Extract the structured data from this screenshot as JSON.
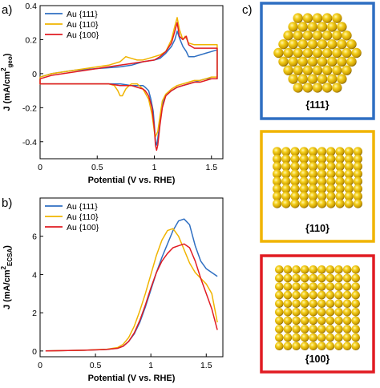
{
  "panels": {
    "a": "a)",
    "b": "b)",
    "c": "c)"
  },
  "colors": {
    "au111": "#2f6fc2",
    "au110": "#f0b400",
    "au100": "#e11b22",
    "sphere": "#e8be12",
    "sphere_dark": "#6a5000"
  },
  "chart_data": [
    {
      "type": "line",
      "panel": "a)",
      "xlabel": "Potential (V vs. RHE)",
      "ylabel_main": "J (mA/cm",
      "ylabel_sup": "2",
      "ylabel_sub": "geo",
      "ylabel_tail": ")",
      "xlim": [
        0,
        1.6
      ],
      "ylim": [
        -0.5,
        0.4
      ],
      "xticks": [
        0,
        0.5,
        1,
        1.5
      ],
      "xtick_labels": [
        "0",
        "0.5",
        "1",
        "1.5"
      ],
      "yticks": [
        -0.4,
        -0.2,
        0,
        0.2,
        0.4
      ],
      "ytick_labels": [
        "-0.4",
        "-0.2",
        "0",
        "0.2",
        "0.4"
      ],
      "legend_position": "top-left",
      "series": [
        {
          "name": "Au {111}",
          "color": "#2f6fc2",
          "x": [
            0,
            0.1,
            0.2,
            0.3,
            0.4,
            0.5,
            0.6,
            0.7,
            0.8,
            0.9,
            1.0,
            1.05,
            1.1,
            1.15,
            1.18,
            1.2,
            1.22,
            1.25,
            1.28,
            1.3,
            1.35,
            1.4,
            1.45,
            1.5,
            1.55,
            1.55,
            1.5,
            1.45,
            1.4,
            1.35,
            1.3,
            1.25,
            1.2,
            1.15,
            1.1,
            1.07,
            1.05,
            1.03,
            1.02,
            1.01,
            1.0,
            0.99,
            0.97,
            0.95,
            0.92,
            0.9,
            0.85,
            0.8,
            0.7,
            0.6,
            0.5,
            0.4,
            0.3,
            0.2,
            0.1,
            0,
            0
          ],
          "y": [
            -0.02,
            0.0,
            0.01,
            0.02,
            0.025,
            0.03,
            0.035,
            0.04,
            0.05,
            0.07,
            0.08,
            0.09,
            0.12,
            0.16,
            0.2,
            0.25,
            0.21,
            0.16,
            0.13,
            0.1,
            0.1,
            0.11,
            0.12,
            0.13,
            0.14,
            -0.03,
            -0.03,
            -0.03,
            -0.04,
            -0.05,
            -0.06,
            -0.07,
            -0.08,
            -0.1,
            -0.13,
            -0.18,
            -0.28,
            -0.38,
            -0.42,
            -0.4,
            -0.3,
            -0.22,
            -0.15,
            -0.1,
            -0.08,
            -0.07,
            -0.07,
            -0.07,
            -0.06,
            -0.06,
            -0.06,
            -0.06,
            -0.06,
            -0.06,
            -0.06,
            -0.06,
            -0.02
          ]
        },
        {
          "name": "Au {110}",
          "color": "#f0b400",
          "x": [
            0,
            0.1,
            0.2,
            0.3,
            0.4,
            0.5,
            0.6,
            0.7,
            0.75,
            0.8,
            0.85,
            0.9,
            0.95,
            1.0,
            1.05,
            1.1,
            1.15,
            1.18,
            1.2,
            1.22,
            1.25,
            1.27,
            1.3,
            1.35,
            1.4,
            1.45,
            1.5,
            1.55,
            1.55,
            1.5,
            1.45,
            1.4,
            1.35,
            1.3,
            1.25,
            1.2,
            1.15,
            1.1,
            1.07,
            1.05,
            1.03,
            1.01,
            1.0,
            0.98,
            0.95,
            0.9,
            0.85,
            0.8,
            0.78,
            0.75,
            0.72,
            0.7,
            0.68,
            0.65,
            0.6,
            0.5,
            0.4,
            0.3,
            0.2,
            0.1,
            0,
            0
          ],
          "y": [
            -0.02,
            0.0,
            0.01,
            0.02,
            0.03,
            0.04,
            0.05,
            0.07,
            0.1,
            0.09,
            0.08,
            0.08,
            0.09,
            0.1,
            0.11,
            0.13,
            0.2,
            0.28,
            0.33,
            0.26,
            0.2,
            0.22,
            0.18,
            0.17,
            0.17,
            0.17,
            0.17,
            0.17,
            -0.02,
            -0.02,
            -0.03,
            -0.04,
            -0.04,
            -0.05,
            -0.06,
            -0.07,
            -0.09,
            -0.12,
            -0.16,
            -0.25,
            -0.34,
            -0.37,
            -0.34,
            -0.24,
            -0.15,
            -0.09,
            -0.06,
            -0.06,
            -0.07,
            -0.09,
            -0.13,
            -0.13,
            -0.1,
            -0.07,
            -0.06,
            -0.06,
            -0.06,
            -0.06,
            -0.06,
            -0.06,
            -0.06,
            -0.02
          ]
        },
        {
          "name": "Au {100}",
          "color": "#e11b22",
          "x": [
            0,
            0.1,
            0.2,
            0.3,
            0.4,
            0.5,
            0.6,
            0.7,
            0.8,
            0.9,
            1.0,
            1.05,
            1.1,
            1.15,
            1.18,
            1.2,
            1.22,
            1.25,
            1.28,
            1.3,
            1.35,
            1.4,
            1.45,
            1.5,
            1.55,
            1.55,
            1.5,
            1.45,
            1.4,
            1.35,
            1.3,
            1.25,
            1.2,
            1.15,
            1.1,
            1.07,
            1.05,
            1.03,
            1.02,
            1.01,
            1.0,
            0.98,
            0.95,
            0.92,
            0.9,
            0.85,
            0.8,
            0.7,
            0.6,
            0.5,
            0.4,
            0.3,
            0.2,
            0.1,
            0,
            0
          ],
          "y": [
            -0.03,
            -0.01,
            0.0,
            0.01,
            0.02,
            0.03,
            0.04,
            0.05,
            0.06,
            0.07,
            0.08,
            0.1,
            0.13,
            0.18,
            0.25,
            0.3,
            0.22,
            0.2,
            0.22,
            0.17,
            0.15,
            0.15,
            0.15,
            0.15,
            0.15,
            -0.03,
            -0.03,
            -0.04,
            -0.05,
            -0.05,
            -0.06,
            -0.07,
            -0.08,
            -0.1,
            -0.13,
            -0.2,
            -0.3,
            -0.42,
            -0.45,
            -0.42,
            -0.32,
            -0.2,
            -0.13,
            -0.1,
            -0.09,
            -0.08,
            -0.07,
            -0.07,
            -0.06,
            -0.06,
            -0.06,
            -0.06,
            -0.06,
            -0.06,
            -0.06,
            -0.03
          ]
        }
      ]
    },
    {
      "type": "line",
      "panel": "b)",
      "xlabel": "Potential (V vs. RHE)",
      "ylabel_main": "J (mA/cm",
      "ylabel_sup": "2",
      "ylabel_sub": "ECSA",
      "ylabel_tail": ")",
      "xlim": [
        0,
        1.65
      ],
      "ylim": [
        -0.3,
        8
      ],
      "xticks": [
        0,
        0.5,
        1,
        1.5
      ],
      "xtick_labels": [
        "0",
        "0.5",
        "1",
        "1.5"
      ],
      "yticks": [
        0,
        2,
        4,
        6
      ],
      "ytick_labels": [
        "0",
        "2",
        "4",
        "6"
      ],
      "legend_position": "top-left",
      "series": [
        {
          "name": "Au {111}",
          "color": "#2f6fc2",
          "x": [
            0.05,
            0.2,
            0.4,
            0.6,
            0.7,
            0.75,
            0.8,
            0.85,
            0.9,
            0.95,
            1.0,
            1.05,
            1.1,
            1.15,
            1.2,
            1.25,
            1.3,
            1.35,
            1.4,
            1.45,
            1.5,
            1.55,
            1.6
          ],
          "y": [
            0,
            0.02,
            0.04,
            0.08,
            0.15,
            0.25,
            0.5,
            0.9,
            1.5,
            2.3,
            3.2,
            4.1,
            4.9,
            5.6,
            6.3,
            6.8,
            6.9,
            6.6,
            5.5,
            4.7,
            4.3,
            4.1,
            3.9
          ]
        },
        {
          "name": "Au {110}",
          "color": "#f0b400",
          "x": [
            0.05,
            0.2,
            0.4,
            0.6,
            0.7,
            0.75,
            0.8,
            0.85,
            0.9,
            0.95,
            1.0,
            1.05,
            1.1,
            1.15,
            1.2,
            1.25,
            1.3,
            1.35,
            1.4,
            1.45,
            1.5,
            1.55,
            1.6
          ],
          "y": [
            0,
            0.02,
            0.04,
            0.09,
            0.18,
            0.35,
            0.7,
            1.3,
            2.1,
            3.0,
            4.0,
            5.0,
            5.8,
            6.3,
            6.4,
            6.0,
            5.3,
            4.6,
            4.1,
            3.8,
            3.5,
            3.0,
            1.5
          ]
        },
        {
          "name": "Au {100}",
          "color": "#e11b22",
          "x": [
            0.05,
            0.2,
            0.4,
            0.6,
            0.7,
            0.75,
            0.8,
            0.85,
            0.9,
            0.95,
            1.0,
            1.05,
            1.1,
            1.15,
            1.2,
            1.25,
            1.3,
            1.35,
            1.4,
            1.45,
            1.5,
            1.55,
            1.6
          ],
          "y": [
            0,
            0.02,
            0.04,
            0.08,
            0.14,
            0.25,
            0.5,
            0.95,
            1.6,
            2.4,
            3.3,
            4.1,
            4.7,
            5.1,
            5.4,
            5.5,
            5.6,
            5.4,
            4.7,
            3.8,
            3.0,
            2.2,
            1.1
          ]
        }
      ]
    }
  ],
  "facets": [
    {
      "label": "{111}",
      "color": "#2f6fc2"
    },
    {
      "label": "{110}",
      "color": "#f0b400"
    },
    {
      "label": "{100}",
      "color": "#e11b22"
    }
  ]
}
